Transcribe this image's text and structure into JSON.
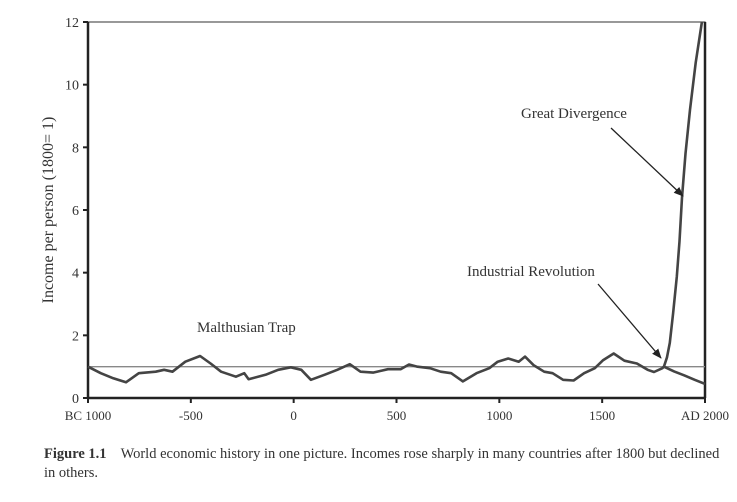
{
  "chart_data": {
    "type": "line",
    "ylabel": "Income per person (1800= 1)",
    "xlabel": "",
    "xlim": [
      -1000,
      2000
    ],
    "ylim": [
      0,
      12
    ],
    "x_ticks": [
      -1000,
      -500,
      0,
      500,
      1000,
      1500,
      2000
    ],
    "x_tick_labels": [
      "BC 1000",
      "-500",
      "0",
      "500",
      "1000",
      "1500",
      "AD 2000"
    ],
    "y_ticks": [
      0,
      2,
      4,
      6,
      8,
      10,
      12
    ],
    "y_tick_labels": [
      "0",
      "2",
      "4",
      "6",
      "8",
      "10",
      "12"
    ],
    "grid": false,
    "reference_line": {
      "y": 1,
      "color": "#888888"
    },
    "series": [
      {
        "key": "pre-industrial",
        "color": "#444444",
        "x": [
          -1000,
          -938,
          -877,
          -815,
          -753,
          -671,
          -630,
          -589,
          -527,
          -455,
          -404,
          -353,
          -281,
          -240,
          -219,
          -137,
          -75,
          -14,
          37,
          84,
          150,
          212,
          273,
          325,
          386,
          458,
          520,
          561,
          602,
          663,
          715,
          766,
          823,
          889,
          951,
          992,
          1043,
          1094,
          1125,
          1166,
          1218,
          1259,
          1310,
          1361,
          1412,
          1464,
          1505,
          1556,
          1608,
          1669,
          1721,
          1752,
          1793,
          1800
        ],
        "y": [
          1.0,
          0.79,
          0.63,
          0.5,
          0.79,
          0.84,
          0.9,
          0.84,
          1.16,
          1.34,
          1.1,
          0.84,
          0.68,
          0.79,
          0.6,
          0.74,
          0.9,
          0.98,
          0.9,
          0.58,
          0.74,
          0.9,
          1.08,
          0.84,
          0.81,
          0.92,
          0.92,
          1.07,
          1.0,
          0.95,
          0.84,
          0.79,
          0.53,
          0.79,
          0.95,
          1.16,
          1.26,
          1.16,
          1.32,
          1.05,
          0.84,
          0.79,
          0.58,
          0.56,
          0.79,
          0.95,
          1.21,
          1.42,
          1.19,
          1.1,
          0.9,
          0.83,
          0.95,
          1.0
        ]
      },
      {
        "key": "great-divergence",
        "color": "#444444",
        "x": [
          1800,
          1815,
          1829,
          1845,
          1863,
          1876,
          1888,
          1905,
          1927,
          1955,
          1985
        ],
        "y": [
          1.0,
          1.3,
          1.76,
          2.7,
          3.87,
          5.0,
          6.4,
          7.8,
          9.2,
          10.7,
          12.0
        ]
      },
      {
        "key": "decline",
        "color": "#444444",
        "x": [
          1800,
          1850,
          1900,
          1950,
          2000
        ],
        "y": [
          1.0,
          0.85,
          0.72,
          0.58,
          0.45
        ]
      }
    ],
    "annotations": [
      {
        "text": "Malthusian Trap"
      },
      {
        "text": "Industrial Revolution",
        "arrow_to": [
          1790,
          1.2
        ]
      },
      {
        "text": "Great Divergence",
        "arrow_to": [
          1890,
          6.4
        ]
      }
    ]
  },
  "caption": {
    "label": "Figure 1.1",
    "text": "World economic history in one picture. Incomes rose sharply in many countries after 1800 but declined in others."
  }
}
